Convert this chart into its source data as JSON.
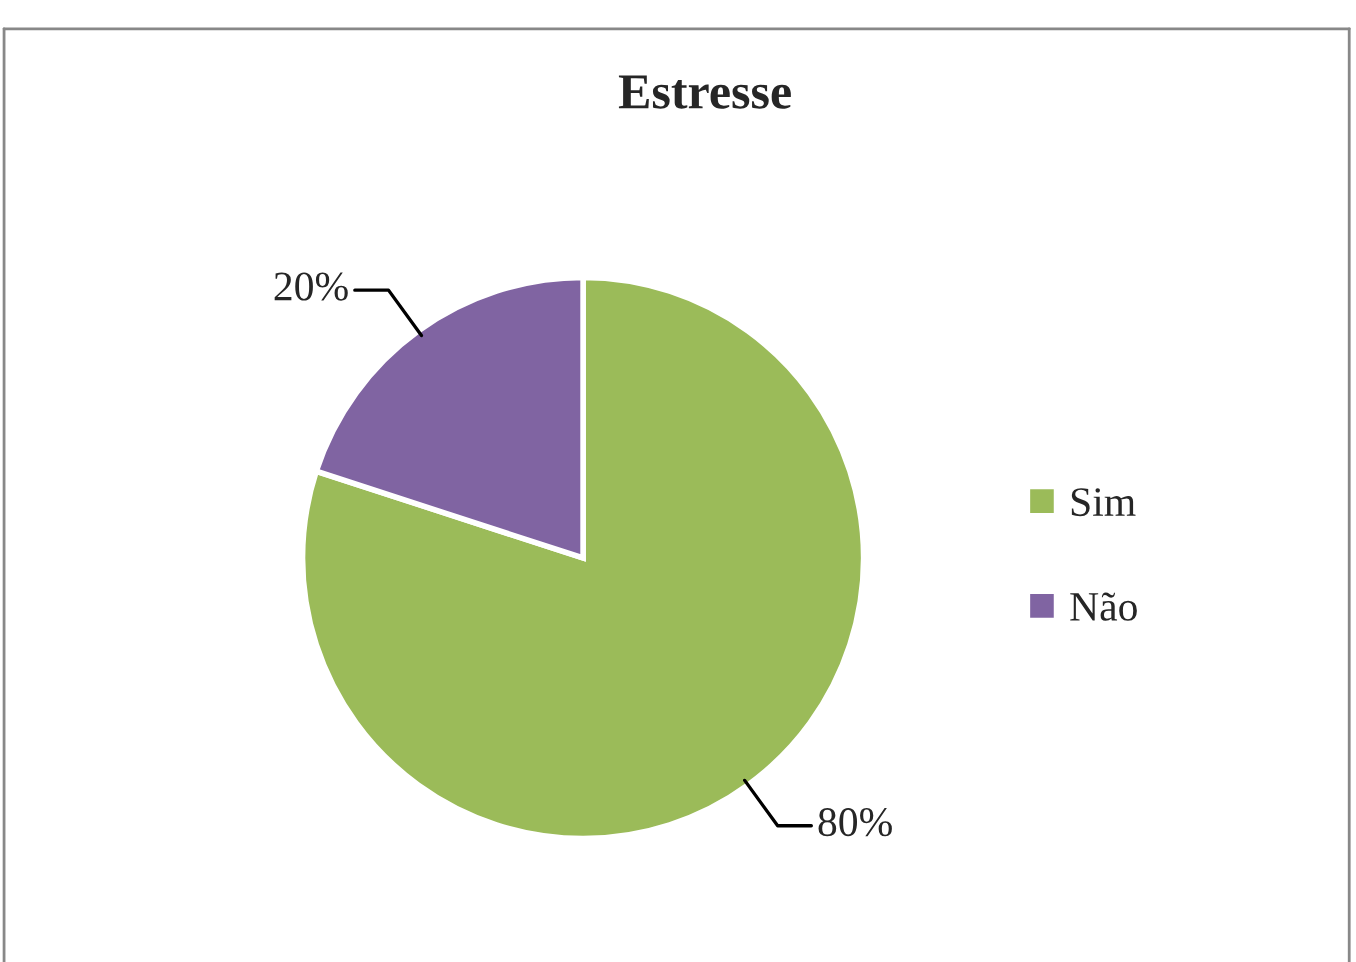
{
  "chart_data": {
    "type": "pie",
    "title": "Estresse",
    "categories": [
      "Sim",
      "Não"
    ],
    "values": [
      80,
      20
    ],
    "colors": [
      "#9bbb59",
      "#8064a2"
    ],
    "value_labels": [
      "80%",
      "20%"
    ],
    "legend": "right"
  }
}
